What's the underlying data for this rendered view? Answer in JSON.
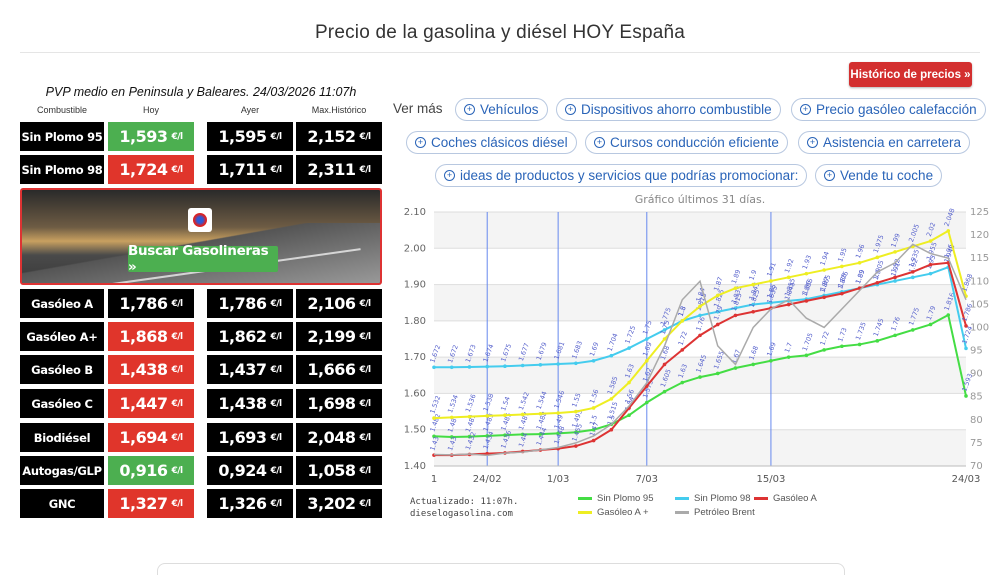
{
  "page": {
    "title": "Precio de la gasolina y diésel HOY España"
  },
  "price_table": {
    "caption": "PVP medio en Peninsula y Baleares. 24/03/2026 11:07h",
    "headers": {
      "fuel": "Combustible",
      "hoy": "Hoy",
      "ayer": "Ayer",
      "max": "Max.Histórico"
    },
    "unit": "€/l",
    "rows": [
      {
        "fuel": "Sin Plomo 95",
        "hoy": "1,593",
        "ayer": "1,595",
        "max": "2,152",
        "status": "down",
        "status_color": "#4caf50"
      },
      {
        "fuel": "Sin Plomo 98",
        "hoy": "1,724",
        "ayer": "1,711",
        "max": "2,311",
        "status": "up",
        "status_color": "#e0352b"
      },
      {
        "fuel": "Gasóleo A",
        "hoy": "1,786",
        "ayer": "1,786",
        "max": "2,106",
        "status": "equal",
        "status_color": "#000000"
      },
      {
        "fuel": "Gasóleo A+",
        "hoy": "1,868",
        "ayer": "1,862",
        "max": "2,199",
        "status": "up",
        "status_color": "#e0352b"
      },
      {
        "fuel": "Gasóleo B",
        "hoy": "1,438",
        "ayer": "1,437",
        "max": "1,666",
        "status": "up",
        "status_color": "#e0352b"
      },
      {
        "fuel": "Gasóleo C",
        "hoy": "1,447",
        "ayer": "1,438",
        "max": "1,698",
        "status": "up",
        "status_color": "#e0352b"
      },
      {
        "fuel": "Biodiésel",
        "hoy": "1,694",
        "ayer": "1,693",
        "max": "2,048",
        "status": "up",
        "status_color": "#e0352b"
      },
      {
        "fuel": "Autogas/GLP",
        "hoy": "0,916",
        "ayer": "0,924",
        "max": "1,058",
        "status": "down",
        "status_color": "#4caf50"
      },
      {
        "fuel": "GNC",
        "hoy": "1,327",
        "ayer": "1,326",
        "max": "3,202",
        "status": "up",
        "status_color": "#e0352b"
      }
    ]
  },
  "banner": {
    "button_label": "Buscar Gasolineras »"
  },
  "historico_button": "Histórico de precios »",
  "ver_mas": {
    "label": "Ver más",
    "links": [
      "Vehículos",
      "Dispositivos ahorro combustible",
      "Precio gasóleo calefacción",
      "Coches clásicos diésel",
      "Cursos conducción eficiente",
      "Asistencia en carretera",
      "ideas de productos y servicios que podrías promocionar:",
      "Vende tu coche"
    ]
  },
  "chart_footer": {
    "updated_line1": "Actualizado: 11:07h.",
    "updated_line2": "dieselogasolina.com"
  },
  "chart_data": {
    "type": "line",
    "title": "Gráfico últimos 31 días.",
    "x": [
      1,
      2,
      3,
      4,
      5,
      6,
      7,
      8,
      9,
      10,
      11,
      12,
      13,
      14,
      15,
      16,
      17,
      18,
      19,
      20,
      21,
      22,
      23,
      24,
      25,
      26,
      27,
      28,
      29,
      30,
      31
    ],
    "x_tick_labels": [
      "1",
      "24/02",
      "1/03",
      "7/03",
      "15/03",
      "24/03"
    ],
    "x_tick_positions": [
      1,
      4,
      8,
      13,
      20,
      31
    ],
    "ylim_left": [
      1.4,
      2.1
    ],
    "y_left_ticks": [
      "1.40",
      "1.50",
      "1.60",
      "1.70",
      "1.80",
      "1.90",
      "2.00",
      "2.10"
    ],
    "ylim_right": [
      70,
      125
    ],
    "y_right_ticks": [
      "70",
      "75",
      "80",
      "85",
      "90",
      "95",
      "100",
      "105",
      "110",
      "115",
      "120",
      "125"
    ],
    "series": [
      {
        "name": "Sin Plomo 95",
        "color": "#44dd44",
        "axis": "left",
        "values": [
          1.482,
          1.48,
          1.481,
          1.483,
          1.485,
          1.487,
          1.488,
          1.49,
          1.493,
          1.5,
          1.515,
          1.54,
          1.575,
          1.605,
          1.63,
          1.645,
          1.655,
          1.67,
          1.68,
          1.69,
          1.7,
          1.705,
          1.72,
          1.73,
          1.735,
          1.745,
          1.76,
          1.775,
          1.79,
          1.816,
          1.593
        ]
      },
      {
        "name": "Sin Plomo 98",
        "color": "#44ccee",
        "axis": "left",
        "values": [
          1.672,
          1.672,
          1.673,
          1.674,
          1.675,
          1.677,
          1.679,
          1.681,
          1.683,
          1.69,
          1.704,
          1.725,
          1.75,
          1.775,
          1.8,
          1.815,
          1.825,
          1.835,
          1.845,
          1.85,
          1.855,
          1.86,
          1.87,
          1.88,
          1.89,
          1.9,
          1.91,
          1.92,
          1.93,
          1.948,
          1.724
        ]
      },
      {
        "name": "Gasóleo A",
        "color": "#dd3333",
        "axis": "left",
        "values": [
          1.43,
          1.43,
          1.432,
          1.434,
          1.436,
          1.44,
          1.444,
          1.448,
          1.455,
          1.47,
          1.5,
          1.56,
          1.62,
          1.68,
          1.72,
          1.76,
          1.79,
          1.815,
          1.825,
          1.835,
          1.845,
          1.855,
          1.865,
          1.875,
          1.89,
          1.905,
          1.92,
          1.935,
          1.955,
          1.96,
          1.786
        ]
      },
      {
        "name": "Gasóleo A +",
        "color": "#eeee22",
        "axis": "left",
        "values": [
          1.532,
          1.534,
          1.536,
          1.538,
          1.54,
          1.542,
          1.544,
          1.546,
          1.55,
          1.56,
          1.585,
          1.63,
          1.69,
          1.75,
          1.8,
          1.84,
          1.87,
          1.89,
          1.9,
          1.91,
          1.92,
          1.93,
          1.94,
          1.95,
          1.96,
          1.975,
          1.99,
          2.005,
          2.02,
          2.048,
          1.868
        ]
      },
      {
        "name": "Petróleo Brent",
        "color": "#aaaaaa",
        "axis": "right",
        "values": [
          72.5,
          72.4,
          72.6,
          72.3,
          72.8,
          73.0,
          73.5,
          74.0,
          75.0,
          76.5,
          79.0,
          83.0,
          88.0,
          96.0,
          106.0,
          110.0,
          96.0,
          92.0,
          100.0,
          104.0,
          106.0,
          102.0,
          100.0,
          104.0,
          108.0,
          112.0,
          114.0,
          118.0,
          116.0,
          115.0,
          106.0
        ]
      }
    ],
    "legend_position": "bottom",
    "grid": true
  }
}
